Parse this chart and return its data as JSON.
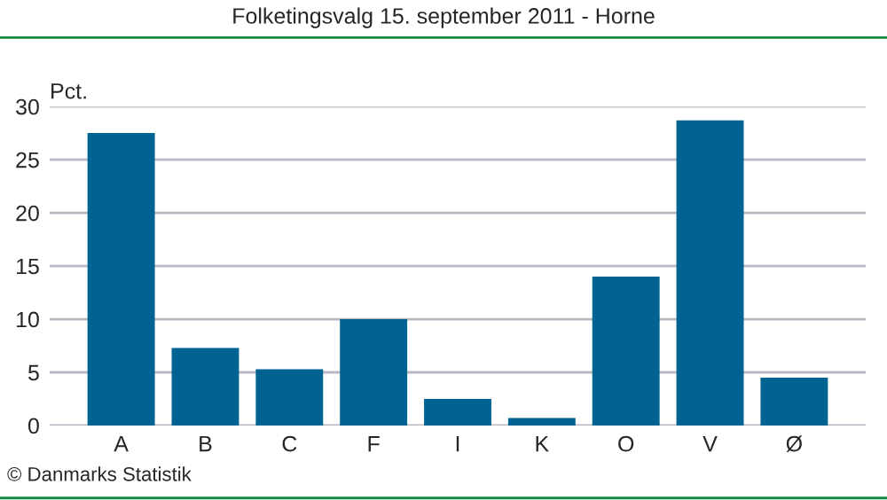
{
  "chart_data": {
    "type": "bar",
    "title": "Folketingsvalg 15. september 2011 - Horne",
    "ylabel": "Pct.",
    "categories": [
      "A",
      "B",
      "C",
      "F",
      "I",
      "K",
      "O",
      "V",
      "Ø"
    ],
    "values": [
      27.5,
      7.3,
      5.3,
      10.0,
      2.5,
      0.7,
      14.0,
      28.7,
      4.5
    ],
    "color": "#006391",
    "ylim": [
      0,
      30
    ],
    "yticks": [
      0,
      5,
      10,
      15,
      20,
      25,
      30
    ],
    "grid": "y",
    "annotations": [
      "© Danmarks Statistik"
    ]
  }
}
